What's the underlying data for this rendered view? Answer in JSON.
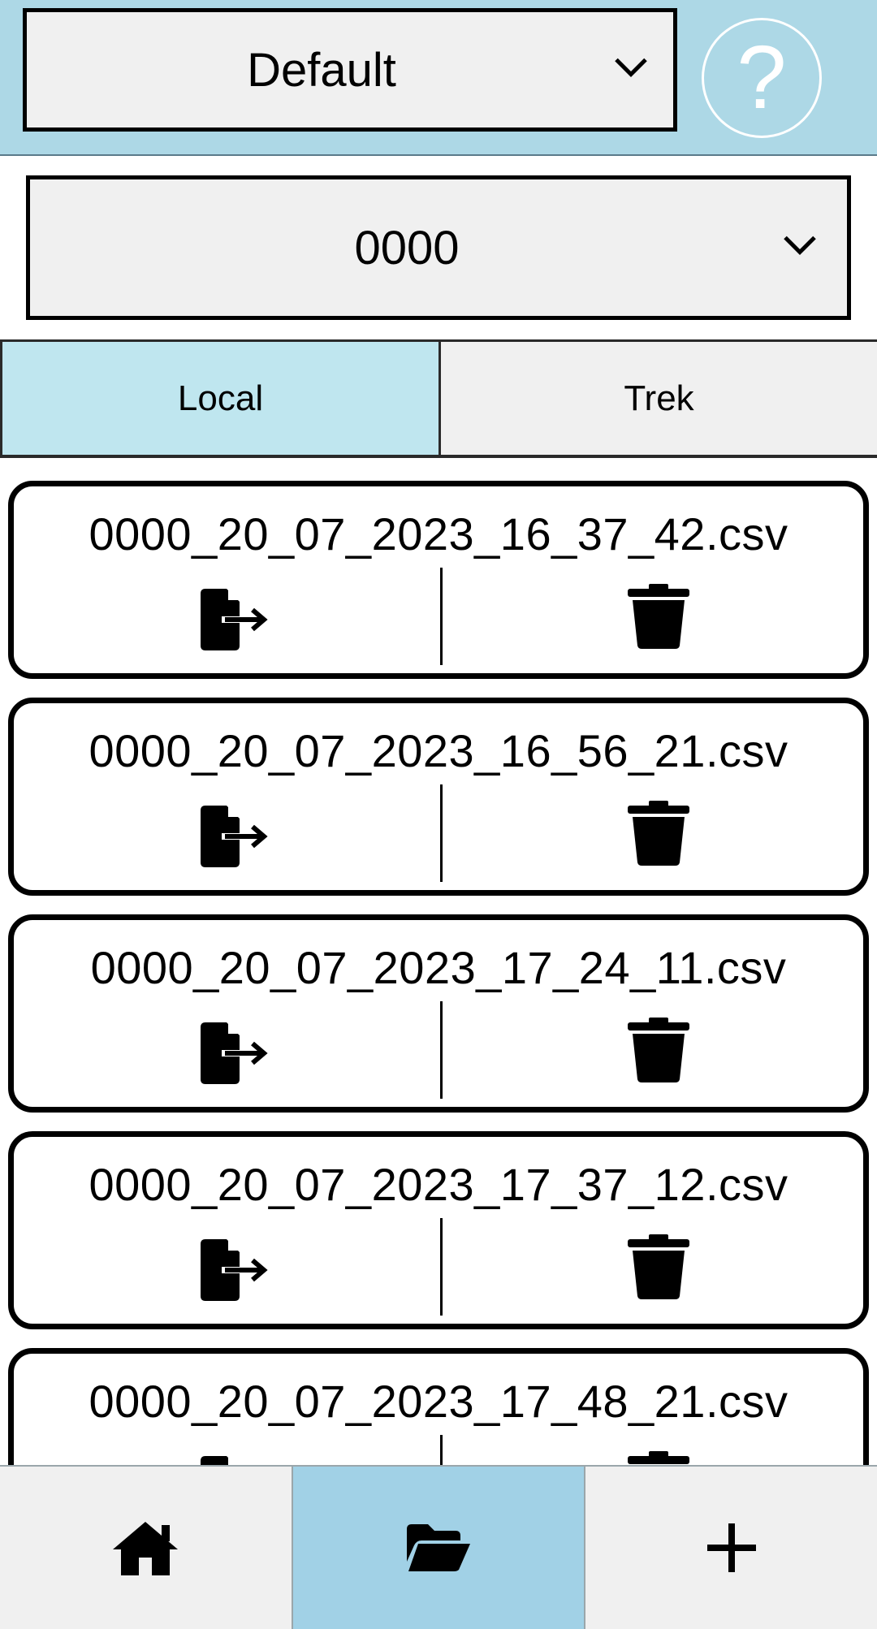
{
  "header": {
    "profile_value": "Default",
    "help_label": "?"
  },
  "id_select": {
    "value": "0000"
  },
  "tabs": [
    {
      "label": "Local",
      "active": true
    },
    {
      "label": "Trek",
      "active": false
    }
  ],
  "files": [
    {
      "name": "0000_20_07_2023_16_37_42.csv"
    },
    {
      "name": "0000_20_07_2023_16_56_21.csv"
    },
    {
      "name": "0000_20_07_2023_17_24_11.csv"
    },
    {
      "name": "0000_20_07_2023_17_37_12.csv"
    },
    {
      "name": "0000_20_07_2023_17_48_21.csv"
    }
  ],
  "icons": {
    "export": "file-export-icon",
    "delete": "trash-icon",
    "chevron": "chevron-down-icon",
    "home": "home-icon",
    "folder": "folder-open-icon",
    "add": "plus-icon"
  },
  "bottom_nav": {
    "active": "files"
  },
  "colors": {
    "header_bg": "#add8e6",
    "tab_active_bg": "#bfe6ef",
    "nav_active_bg": "#a1d1e6",
    "control_bg": "#f0f0f0"
  }
}
